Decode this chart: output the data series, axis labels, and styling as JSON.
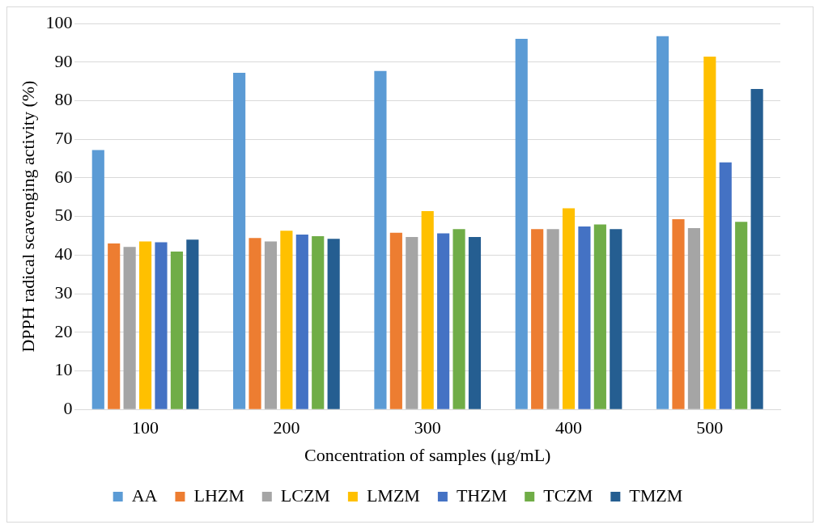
{
  "chart_data": {
    "type": "bar",
    "xlabel": "Concentration of samples (μg/mL)",
    "ylabel": "DPPH radical scavenging activity (%)",
    "categories": [
      "100",
      "200",
      "300",
      "400",
      "500"
    ],
    "series": [
      {
        "name": "AA",
        "color": "#5b9bd5",
        "values": [
          67.2,
          87.2,
          87.7,
          96.0,
          96.7
        ]
      },
      {
        "name": "LHZM",
        "color": "#ed7d31",
        "values": [
          43.0,
          44.4,
          45.8,
          46.7,
          49.3
        ]
      },
      {
        "name": "LCZM",
        "color": "#a5a5a5",
        "values": [
          42.1,
          43.5,
          44.7,
          46.7,
          47.0
        ]
      },
      {
        "name": "LMZM",
        "color": "#ffc000",
        "values": [
          43.5,
          46.3,
          51.4,
          52.1,
          91.4
        ]
      },
      {
        "name": "THZM",
        "color": "#4472c4",
        "values": [
          43.3,
          45.3,
          45.6,
          47.4,
          64.0
        ]
      },
      {
        "name": "TCZM",
        "color": "#70ad47",
        "values": [
          40.9,
          44.9,
          46.7,
          47.9,
          48.6
        ]
      },
      {
        "name": "TMZM",
        "color": "#255e91",
        "values": [
          44.0,
          44.2,
          44.7,
          46.7,
          83.0
        ]
      }
    ],
    "ylim": [
      0,
      100
    ],
    "yticks": [
      0,
      10,
      20,
      30,
      40,
      50,
      60,
      70,
      80,
      90,
      100
    ],
    "grid": "y",
    "legend": "bottom"
  }
}
